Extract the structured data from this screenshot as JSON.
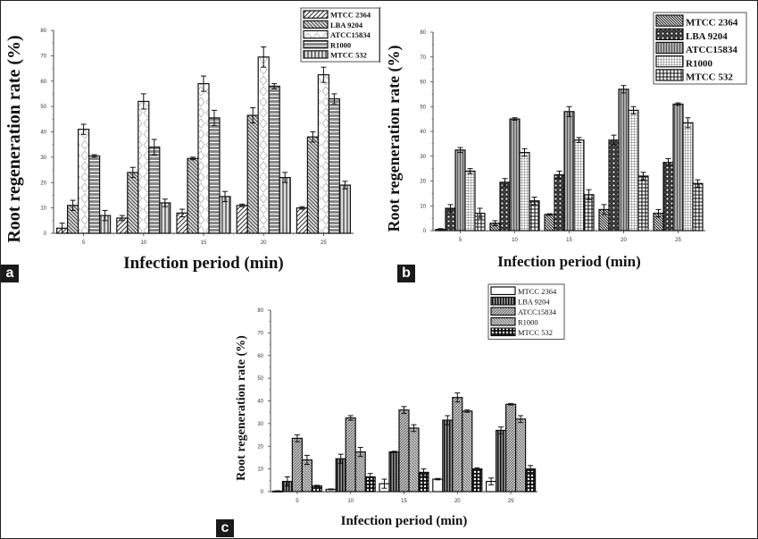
{
  "figure": {
    "panels": [
      "a",
      "b",
      "c"
    ]
  },
  "chart_data": [
    {
      "panel_label": "a",
      "type": "bar",
      "title": "",
      "xlabel": "Infection period (min)",
      "ylabel": "Root regeneration rate (%)",
      "categories": [
        "5",
        "10",
        "15",
        "20",
        "25"
      ],
      "ylim": [
        0,
        80
      ],
      "yticks": [
        "0",
        "10",
        "20",
        "30",
        "40",
        "50",
        "60",
        "70",
        "80"
      ],
      "legend_position": "top-right",
      "grid": false,
      "error_bars": true,
      "series": [
        {
          "name": "MTCC 2364",
          "pattern": "diag-fwd",
          "values": [
            2,
            6,
            8,
            11,
            10
          ],
          "errors": [
            2,
            1,
            1.5,
            0.5,
            0.5
          ]
        },
        {
          "name": "LBA 9204",
          "pattern": "diag-back",
          "values": [
            11,
            24,
            29.5,
            46.5,
            38
          ],
          "errors": [
            2,
            2,
            0.5,
            3,
            2
          ]
        },
        {
          "name": "ATCC15834",
          "pattern": "diamond-light",
          "values": [
            41,
            52,
            59,
            69.5,
            62.5
          ],
          "errors": [
            2,
            3,
            3,
            4,
            3
          ]
        },
        {
          "name": "R1000",
          "pattern": "horiz-lines",
          "values": [
            30.5,
            34,
            45.5,
            58,
            53
          ],
          "errors": [
            0.5,
            3,
            3,
            1,
            2
          ]
        },
        {
          "name": "MTCC 532",
          "pattern": "vert-lines",
          "values": [
            7,
            12,
            14.5,
            22,
            19
          ],
          "errors": [
            2,
            1.5,
            2,
            2,
            1.5
          ]
        }
      ]
    },
    {
      "panel_label": "b",
      "type": "bar",
      "title": "",
      "xlabel": "Infection period (min)",
      "ylabel": "Root regeneration rate (%)",
      "categories": [
        "5",
        "10",
        "15",
        "20",
        "25"
      ],
      "ylim": [
        0,
        80
      ],
      "yticks": [
        "0",
        "10",
        "20",
        "30",
        "40",
        "50",
        "60",
        "70",
        "80"
      ],
      "legend_position": "top-right",
      "grid": false,
      "error_bars": true,
      "series": [
        {
          "name": "MTCC 2364",
          "pattern": "diag-back-dense",
          "values": [
            0.5,
            3,
            6.5,
            8.5,
            7
          ],
          "errors": [
            0.3,
            1,
            0.3,
            2,
            1.5
          ]
        },
        {
          "name": "LBA 9204",
          "pattern": "crosshatch-circles",
          "values": [
            9,
            19.5,
            22.5,
            36.5,
            27.5
          ],
          "errors": [
            1.5,
            1.5,
            1.5,
            2,
            1.5
          ]
        },
        {
          "name": "ATCC15834",
          "pattern": "vert-lines-gray",
          "values": [
            32.5,
            45,
            48,
            57,
            51
          ],
          "errors": [
            1,
            0.5,
            2,
            1.5,
            0.5
          ]
        },
        {
          "name": "R1000",
          "pattern": "fine-grid",
          "values": [
            24,
            31.5,
            36.5,
            48.5,
            43.5
          ],
          "errors": [
            1,
            1.5,
            1,
            1.5,
            2
          ]
        },
        {
          "name": "MTCC 532",
          "pattern": "plus-grid",
          "values": [
            7,
            12,
            14.5,
            22,
            19
          ],
          "errors": [
            2,
            1.5,
            2,
            1.5,
            1.5
          ]
        }
      ]
    },
    {
      "panel_label": "c",
      "type": "bar",
      "title": "",
      "xlabel": "Infection period (min)",
      "ylabel": "Root regeneration rate (%)",
      "categories": [
        "5",
        "10",
        "15",
        "20",
        "25"
      ],
      "ylim": [
        0,
        80
      ],
      "yticks": [
        "0",
        "10",
        "20",
        "30",
        "40",
        "50",
        "60",
        "70",
        "80"
      ],
      "legend_position": "top-right",
      "grid": false,
      "error_bars": true,
      "series": [
        {
          "name": "MTCC 2364",
          "pattern": "white",
          "values": [
            0.2,
            1,
            3.5,
            5.5,
            4.5
          ],
          "errors": [
            0.2,
            0.2,
            2,
            0.3,
            1.5
          ]
        },
        {
          "name": "LBA 9204",
          "pattern": "vert-dark",
          "values": [
            4.5,
            14.5,
            17.5,
            31.5,
            27
          ],
          "errors": [
            2,
            2,
            0.3,
            2,
            1.5
          ]
        },
        {
          "name": "ATCC15834",
          "pattern": "diag-chevron",
          "values": [
            23.5,
            32.5,
            36,
            41.5,
            38.5
          ],
          "errors": [
            1.5,
            1,
            1.5,
            2,
            0.3
          ]
        },
        {
          "name": "R1000",
          "pattern": "diag-chevron-light",
          "values": [
            14,
            17.5,
            28,
            35.5,
            32
          ],
          "errors": [
            2,
            2,
            1.5,
            0.5,
            1.5
          ]
        },
        {
          "name": "MTCC 532",
          "pattern": "checker-circles",
          "values": [
            2.5,
            6.5,
            8.5,
            10,
            10
          ],
          "errors": [
            0.3,
            1.5,
            1.5,
            0.5,
            1.5
          ]
        }
      ]
    }
  ]
}
